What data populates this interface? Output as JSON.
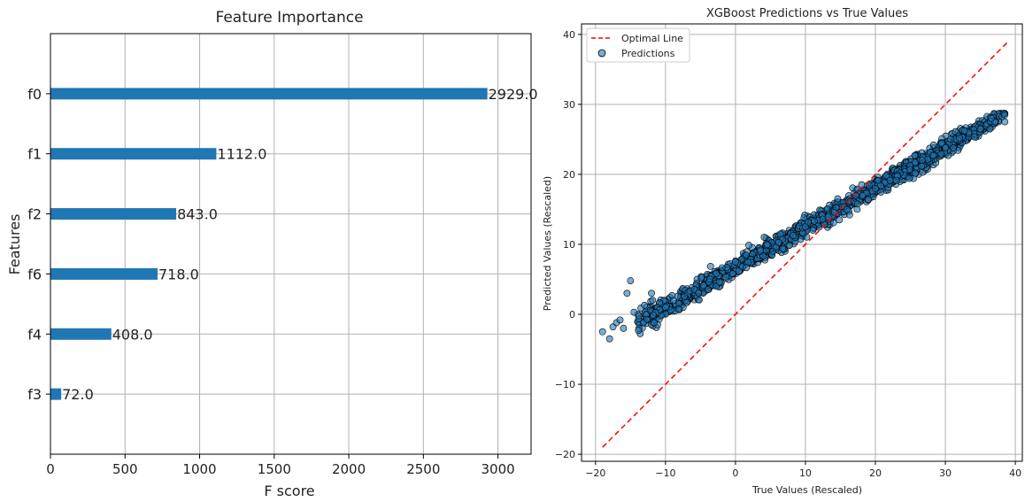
{
  "chart_data": [
    {
      "type": "bar",
      "orientation": "horizontal",
      "title": "Feature Importance",
      "xlabel": "F score",
      "ylabel": "Features",
      "categories": [
        "f3",
        "f4",
        "f6",
        "f2",
        "f1",
        "f0"
      ],
      "values": [
        72.0,
        408.0,
        718.0,
        843.0,
        1112.0,
        2929.0
      ],
      "data_labels": [
        "72.0",
        "408.0",
        "718.0",
        "843.0",
        "1112.0",
        "2929.0"
      ],
      "xlim": [
        0,
        3222
      ],
      "xticks": [
        0,
        500,
        1000,
        1500,
        2000,
        2500,
        3000
      ],
      "xtick_labels": [
        "0",
        "500",
        "1000",
        "1500",
        "2000",
        "2500",
        "3000"
      ],
      "bar_color": "#1f77b4",
      "grid": true
    },
    {
      "type": "scatter",
      "title": "XGBoost Predictions vs True Values",
      "xlabel": "True Values (Rescaled)",
      "ylabel": "Predicted Values (Rescaled)",
      "xlim": [
        -22,
        41
      ],
      "ylim": [
        -21,
        41.5
      ],
      "xticks": [
        -20,
        -10,
        0,
        10,
        20,
        30,
        40
      ],
      "xtick_labels": [
        "−20",
        "−10",
        "0",
        "10",
        "20",
        "30",
        "40"
      ],
      "yticks": [
        -20,
        -10,
        0,
        10,
        20,
        30,
        40
      ],
      "ytick_labels": [
        "−20",
        "−10",
        "0",
        "10",
        "20",
        "30",
        "40"
      ],
      "grid": true,
      "legend_position": "top-left",
      "series": [
        {
          "name": "Optimal Line",
          "kind": "line",
          "style": "dashed",
          "color": "#ff0000",
          "x": [
            -19,
            39
          ],
          "y": [
            -19,
            39
          ]
        },
        {
          "name": "Predictions",
          "kind": "scatter",
          "color": "#1f77b4",
          "edge_color": "#000000",
          "fit": {
            "slope": 0.57,
            "intercept": 6.7
          },
          "sample_points": [
            {
              "x": -19,
              "y": -2.5
            },
            {
              "x": -18,
              "y": -3.5
            },
            {
              "x": -17.5,
              "y": -1.8
            },
            {
              "x": -17,
              "y": -1.2
            },
            {
              "x": -16.5,
              "y": -0.8
            },
            {
              "x": -16,
              "y": -2.0
            },
            {
              "x": -15.5,
              "y": 3.0
            },
            {
              "x": -15,
              "y": 4.8
            },
            {
              "x": -14.5,
              "y": 0.3
            },
            {
              "x": -13,
              "y": 1.3
            },
            {
              "x": -12,
              "y": 3.0
            },
            {
              "x": -10,
              "y": 1.0
            },
            {
              "x": 0,
              "y": 7.5
            },
            {
              "x": 10,
              "y": 12.5
            },
            {
              "x": 20,
              "y": 18.0
            },
            {
              "x": 30,
              "y": 23.8
            },
            {
              "x": 35,
              "y": 26.5
            },
            {
              "x": 38.5,
              "y": 28.5
            },
            {
              "x": 38.5,
              "y": 27.5
            }
          ]
        }
      ]
    }
  ]
}
